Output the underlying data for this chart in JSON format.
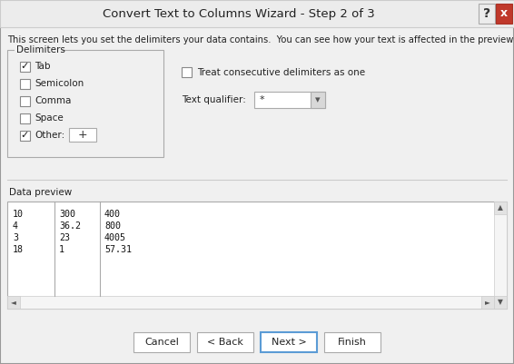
{
  "title": "Convert Text to Columns Wizard - Step 2 of 3",
  "bg_color": "#f0f0f0",
  "description": "This screen lets you set the delimiters your data contains.  You can see how your text is affected in the preview below.",
  "delimiters_label": "Delimiters",
  "checkboxes": [
    {
      "label": "Tab",
      "checked": true
    },
    {
      "label": "Semicolon",
      "checked": false
    },
    {
      "label": "Comma",
      "checked": false
    },
    {
      "label": "Space",
      "checked": false
    },
    {
      "label": "Other:",
      "checked": true
    }
  ],
  "other_value": "+",
  "treat_consecutive": "Treat consecutive delimiters as one",
  "treat_checked": false,
  "text_qualifier_label": "Text qualifier:",
  "text_qualifier_value": "*",
  "data_preview_label": "Data preview",
  "preview_data": [
    [
      "10",
      "300",
      "400"
    ],
    [
      "4",
      "36.2",
      "800"
    ],
    [
      "3",
      "23",
      "4005"
    ],
    [
      "18",
      "1",
      "57.31"
    ]
  ],
  "buttons": [
    "Cancel",
    "< Back",
    "Next >",
    "Finish"
  ],
  "close_btn_color": "#c0392b"
}
